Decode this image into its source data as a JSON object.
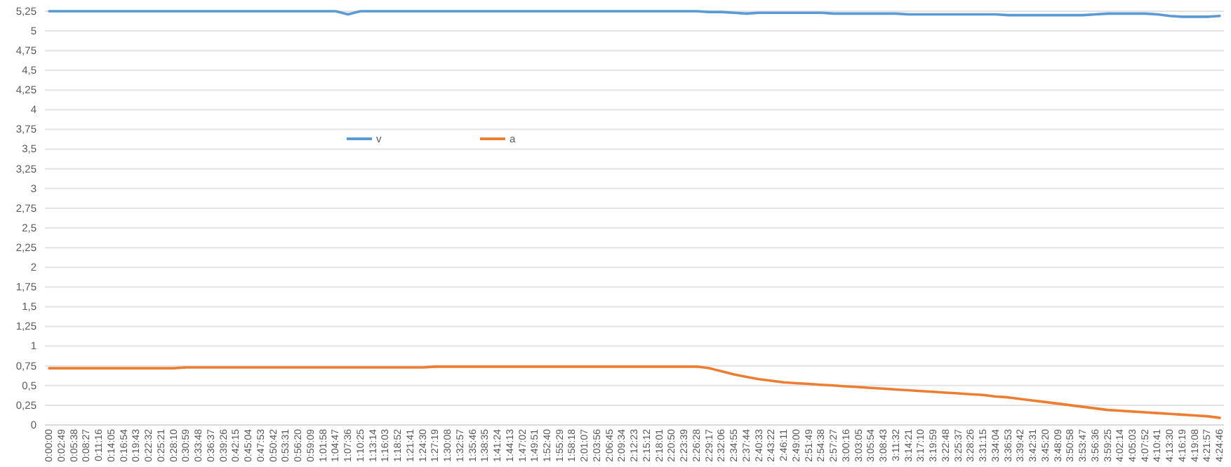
{
  "chart_data": {
    "type": "line",
    "categories": [
      "0:00:00",
      "0:02:49",
      "0:05:38",
      "0:08:27",
      "0:11:16",
      "0:14:05",
      "0:16:54",
      "0:19:43",
      "0:22:32",
      "0:25:21",
      "0:28:10",
      "0:30:59",
      "0:33:48",
      "0:36:37",
      "0:39:26",
      "0:42:15",
      "0:45:04",
      "0:47:53",
      "0:50:42",
      "0:53:31",
      "0:56:20",
      "0:59:09",
      "1:01:58",
      "1:04:47",
      "1:07:36",
      "1:10:25",
      "1:13:14",
      "1:16:03",
      "1:18:52",
      "1:21:41",
      "1:24:30",
      "1:27:19",
      "1:30:08",
      "1:32:57",
      "1:35:46",
      "1:38:35",
      "1:41:24",
      "1:44:13",
      "1:47:02",
      "1:49:51",
      "1:52:40",
      "1:55:29",
      "1:58:18",
      "2:01:07",
      "2:03:56",
      "2:06:45",
      "2:09:34",
      "2:12:23",
      "2:15:12",
      "2:18:01",
      "2:20:50",
      "2:23:39",
      "2:26:28",
      "2:29:17",
      "2:32:06",
      "2:34:55",
      "2:37:44",
      "2:40:33",
      "2:43:22",
      "2:46:11",
      "2:49:00",
      "2:51:49",
      "2:54:38",
      "2:57:27",
      "3:00:16",
      "3:03:05",
      "3:05:54",
      "3:08:43",
      "3:11:32",
      "3:14:21",
      "3:17:10",
      "3:19:59",
      "3:22:48",
      "3:25:37",
      "3:28:26",
      "3:31:15",
      "3:34:04",
      "3:36:53",
      "3:39:42",
      "3:42:31",
      "3:45:20",
      "3:48:09",
      "3:50:58",
      "3:53:47",
      "3:56:36",
      "3:59:25",
      "4:02:14",
      "4:05:03",
      "4:07:52",
      "4:10:41",
      "4:13:30",
      "4:16:19",
      "4:19:08",
      "4:21:57",
      "4:24:46"
    ],
    "series": [
      {
        "name": "v",
        "color": "#5b9bd5",
        "values": [
          5.25,
          5.25,
          5.25,
          5.25,
          5.25,
          5.25,
          5.25,
          5.25,
          5.25,
          5.25,
          5.25,
          5.25,
          5.25,
          5.25,
          5.25,
          5.25,
          5.25,
          5.25,
          5.25,
          5.25,
          5.25,
          5.25,
          5.25,
          5.25,
          5.21,
          5.25,
          5.25,
          5.25,
          5.25,
          5.25,
          5.25,
          5.25,
          5.25,
          5.25,
          5.25,
          5.25,
          5.25,
          5.25,
          5.25,
          5.25,
          5.25,
          5.25,
          5.25,
          5.25,
          5.25,
          5.25,
          5.25,
          5.25,
          5.25,
          5.25,
          5.25,
          5.25,
          5.25,
          5.24,
          5.24,
          5.23,
          5.22,
          5.23,
          5.23,
          5.23,
          5.23,
          5.23,
          5.23,
          5.22,
          5.22,
          5.22,
          5.22,
          5.22,
          5.22,
          5.21,
          5.21,
          5.21,
          5.21,
          5.21,
          5.21,
          5.21,
          5.21,
          5.2,
          5.2,
          5.2,
          5.2,
          5.2,
          5.2,
          5.2,
          5.21,
          5.22,
          5.22,
          5.22,
          5.22,
          5.21,
          5.19,
          5.18,
          5.18,
          5.18,
          5.19
        ]
      },
      {
        "name": "a",
        "color": "#ed7d31",
        "values": [
          0.72,
          0.72,
          0.72,
          0.72,
          0.72,
          0.72,
          0.72,
          0.72,
          0.72,
          0.72,
          0.72,
          0.73,
          0.73,
          0.73,
          0.73,
          0.73,
          0.73,
          0.73,
          0.73,
          0.73,
          0.73,
          0.73,
          0.73,
          0.73,
          0.73,
          0.73,
          0.73,
          0.73,
          0.73,
          0.73,
          0.73,
          0.74,
          0.74,
          0.74,
          0.74,
          0.74,
          0.74,
          0.74,
          0.74,
          0.74,
          0.74,
          0.74,
          0.74,
          0.74,
          0.74,
          0.74,
          0.74,
          0.74,
          0.74,
          0.74,
          0.74,
          0.74,
          0.74,
          0.72,
          0.68,
          0.64,
          0.61,
          0.58,
          0.56,
          0.54,
          0.53,
          0.52,
          0.51,
          0.5,
          0.49,
          0.48,
          0.47,
          0.46,
          0.45,
          0.44,
          0.43,
          0.42,
          0.41,
          0.4,
          0.39,
          0.38,
          0.36,
          0.35,
          0.33,
          0.31,
          0.29,
          0.27,
          0.25,
          0.23,
          0.21,
          0.19,
          0.18,
          0.17,
          0.16,
          0.15,
          0.14,
          0.13,
          0.12,
          0.11,
          0.09
        ]
      }
    ],
    "ylim": [
      0,
      5.25
    ],
    "yticks": [
      0,
      {
        "value": 0.25,
        "label": "0,25"
      },
      {
        "value": 0.5,
        "label": "0,5"
      },
      {
        "value": 0.75,
        "label": "0,75"
      },
      1,
      {
        "value": 1.25,
        "label": "1,25"
      },
      {
        "value": 1.5,
        "label": "1,5"
      },
      {
        "value": 1.75,
        "label": "1,75"
      },
      2,
      {
        "value": 2.25,
        "label": "2,25"
      },
      {
        "value": 2.5,
        "label": "2,5"
      },
      {
        "value": 2.75,
        "label": "2,75"
      },
      3,
      {
        "value": 3.25,
        "label": "3,25"
      },
      {
        "value": 3.5,
        "label": "3,5"
      },
      {
        "value": 3.75,
        "label": "3,75"
      },
      4,
      {
        "value": 4.25,
        "label": "4,25"
      },
      {
        "value": 4.5,
        "label": "4,5"
      },
      {
        "value": 4.75,
        "label": "4,75"
      },
      5,
      {
        "value": 5.25,
        "label": "5,25"
      }
    ],
    "grid": "y",
    "legend": "top",
    "marker": "none",
    "line_style": "solid"
  }
}
